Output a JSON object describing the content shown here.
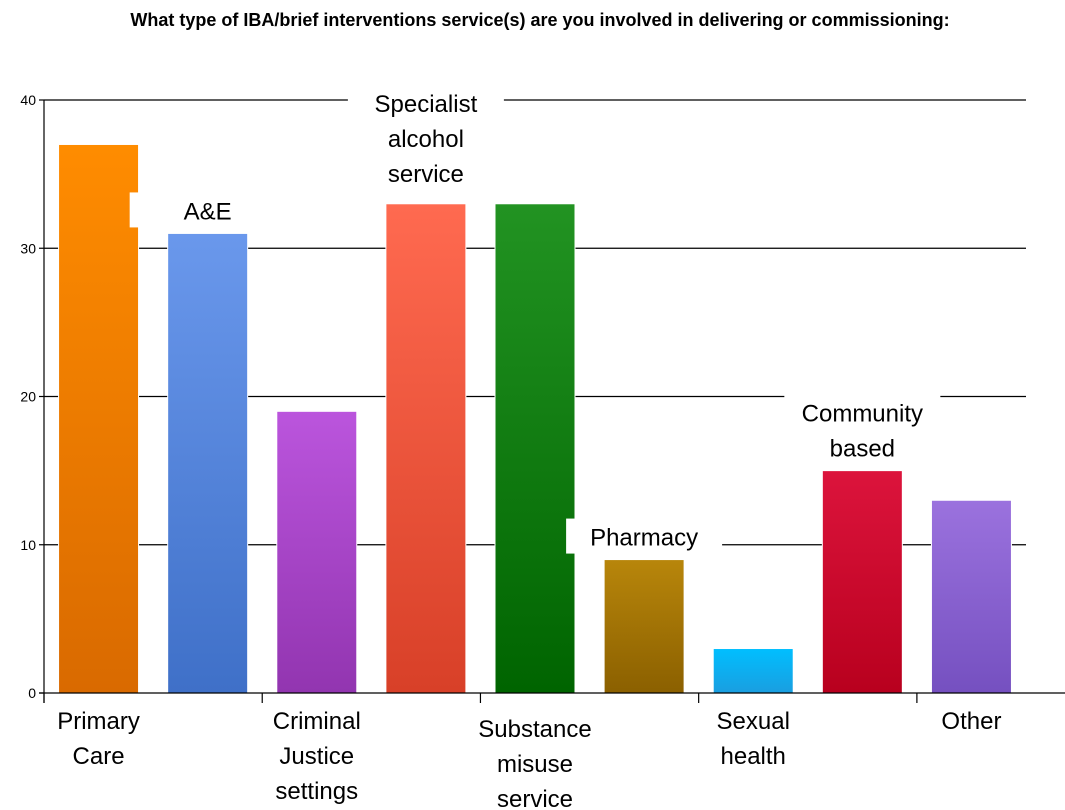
{
  "chart_data": {
    "type": "bar",
    "title": "What type of IBA/brief interventions service(s) are you involved in delivering or commissioning:",
    "xlabel": "",
    "ylabel": "",
    "ylim": [
      0,
      40
    ],
    "yticks": [
      0,
      10,
      20,
      30,
      40
    ],
    "grid": true,
    "legend": "none",
    "categories": [
      "Primary Care",
      "A&E",
      "Criminal Justice settings",
      "Specialist alcohol service",
      "Substance misuse service",
      "Pharmacy",
      "Sexual health",
      "Community based",
      "Other"
    ],
    "values": [
      37,
      31,
      19,
      33,
      33,
      9,
      3,
      15,
      13
    ],
    "colors": [
      [
        "#ff8c00",
        "#d96a00"
      ],
      [
        "#6a98ec",
        "#3f70c8"
      ],
      [
        "#bb55dd",
        "#9235b0"
      ],
      [
        "#ff6a50",
        "#d84028"
      ],
      [
        "#229322",
        "#006400"
      ],
      [
        "#b8860b",
        "#8b6000"
      ],
      [
        "#00bfff",
        "#1a9ee0"
      ],
      [
        "#dc143c",
        "#b8001e"
      ],
      [
        "#9b72de",
        "#7550c0"
      ]
    ]
  }
}
